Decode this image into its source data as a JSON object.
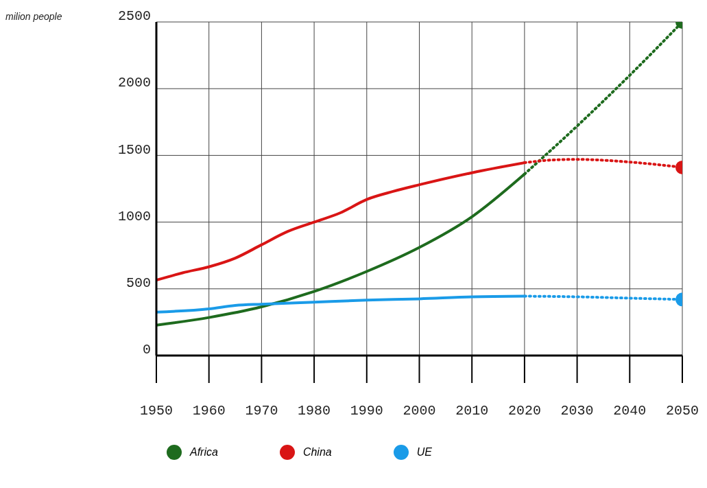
{
  "chart_data": {
    "type": "line",
    "annotations": [
      "milion people"
    ],
    "xlim": [
      1950,
      2050
    ],
    "ylim": [
      0,
      2500
    ],
    "xticks": [
      1950,
      1960,
      1970,
      1980,
      1990,
      2000,
      2010,
      2020,
      2030,
      2040,
      2050
    ],
    "yticks": [
      0,
      500,
      1000,
      1500,
      2000,
      2500
    ],
    "grid": true,
    "legend": "bottom",
    "marker": "none",
    "line_style": "solid",
    "series": [
      {
        "name": "Africa",
        "color": "#1e6b1e",
        "x": [
          1950,
          1960,
          1970,
          1980,
          1990,
          2000,
          2010,
          2020
        ],
        "values": [
          228,
          285,
          365,
          480,
          630,
          810,
          1040,
          1360
        ]
      },
      {
        "name": "China",
        "color": "#d91515",
        "x": [
          1950,
          1955,
          1960,
          1965,
          1970,
          1975,
          1980,
          1985,
          1990,
          1995,
          2000,
          2010,
          2020
        ],
        "values": [
          565,
          620,
          665,
          730,
          830,
          930,
          1000,
          1070,
          1170,
          1230,
          1280,
          1370,
          1445
        ]
      },
      {
        "name": "UE",
        "color": "#1a9be8",
        "x": [
          1950,
          1960,
          1965,
          1970,
          1980,
          1990,
          2000,
          2010,
          2020
        ],
        "values": [
          325,
          350,
          375,
          385,
          400,
          415,
          425,
          440,
          445
        ]
      },
      {
        "color": "#1e6b1e",
        "line_style": "dotted",
        "x": [
          2020,
          2030,
          2040,
          2050
        ],
        "values": [
          1360,
          1720,
          2100,
          2500
        ]
      },
      {
        "color": "#d91515",
        "line_style": "dotted",
        "x": [
          2020,
          2025,
          2030,
          2040,
          2050
        ],
        "values": [
          1445,
          1465,
          1470,
          1450,
          1410
        ]
      },
      {
        "color": "#1a9be8",
        "line_style": "dotted",
        "x": [
          2020,
          2030,
          2040,
          2050
        ],
        "values": [
          445,
          440,
          430,
          420
        ]
      },
      {
        "type": "scatter",
        "color": "#1e6b1e",
        "marker": "circle",
        "x": [
          2050
        ],
        "values": [
          2500
        ]
      },
      {
        "type": "scatter",
        "color": "#d91515",
        "marker": "circle",
        "x": [
          2050
        ],
        "values": [
          1410
        ]
      },
      {
        "type": "scatter",
        "color": "#1a9be8",
        "marker": "circle",
        "x": [
          2050
        ],
        "values": [
          420
        ]
      }
    ]
  }
}
